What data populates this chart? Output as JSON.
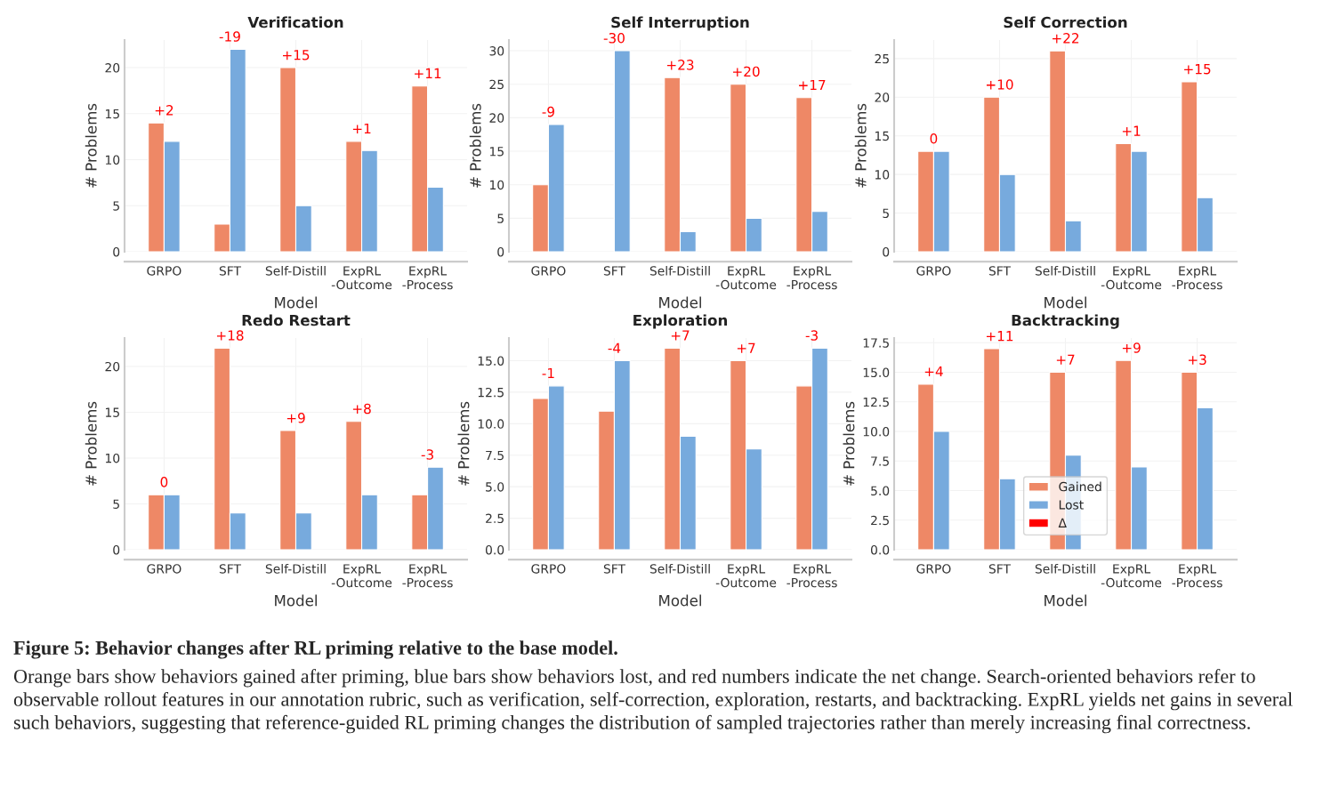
{
  "chart_data": [
    {
      "type": "bar",
      "title": "Verification",
      "xlabel": "Model",
      "ylabel": "# Problems",
      "categories": [
        "GRPO",
        "SFT",
        "Self-Distill",
        "ExpRL\n-Outcome",
        "ExpRL\n-Process"
      ],
      "ylim": [
        0,
        23
      ],
      "yticks": [
        0,
        5,
        10,
        15,
        20
      ],
      "grid": true,
      "series": [
        {
          "color": "#ee8866",
          "values": [
            14,
            3,
            20,
            12,
            18
          ]
        },
        {
          "color": "#77aadd",
          "values": [
            12,
            22,
            5,
            11,
            7
          ]
        },
        {
          "type": "other",
          "color": "#ff0000",
          "values": [
            null,
            null,
            null,
            null,
            null
          ],
          "value_labels": [
            "+2",
            "-19",
            "+15",
            "+1",
            "+11"
          ]
        }
      ]
    },
    {
      "type": "bar",
      "title": "Self Interruption",
      "xlabel": "Model",
      "ylabel": "# Problems",
      "categories": [
        "GRPO",
        "SFT",
        "Self-Distill",
        "ExpRL\n-Outcome",
        "ExpRL\n-Process"
      ],
      "ylim": [
        0,
        31.6
      ],
      "yticks": [
        0,
        5,
        10,
        15,
        20,
        25,
        30
      ],
      "grid": true,
      "series": [
        {
          "color": "#ee8866",
          "values": [
            10,
            0,
            26,
            25,
            23
          ]
        },
        {
          "color": "#77aadd",
          "values": [
            19,
            30,
            3,
            5,
            6
          ]
        },
        {
          "type": "other",
          "color": "#ff0000",
          "values": [
            null,
            null,
            null,
            null,
            null
          ],
          "value_labels": [
            "-9",
            "-30",
            "+23",
            "+20",
            "+17"
          ]
        }
      ]
    },
    {
      "type": "bar",
      "title": "Self Correction",
      "xlabel": "Model",
      "ylabel": "# Problems",
      "categories": [
        "GRPO",
        "SFT",
        "Self-Distill",
        "ExpRL\n-Outcome",
        "ExpRL\n-Process"
      ],
      "ylim": [
        0,
        27.4
      ],
      "yticks": [
        0,
        5,
        10,
        15,
        20,
        25
      ],
      "grid": true,
      "series": [
        {
          "color": "#ee8866",
          "values": [
            13,
            20,
            26,
            14,
            22
          ]
        },
        {
          "color": "#77aadd",
          "values": [
            13,
            10,
            4,
            13,
            7
          ]
        },
        {
          "type": "other",
          "color": "#ff0000",
          "values": [
            null,
            null,
            null,
            null,
            null
          ],
          "value_labels": [
            "0",
            "+10",
            "+22",
            "+1",
            "+15"
          ]
        }
      ]
    },
    {
      "type": "bar",
      "title": "Redo Restart",
      "xlabel": "Model",
      "ylabel": "# Problems",
      "categories": [
        "GRPO",
        "SFT",
        "Self-Distill",
        "ExpRL\n-Outcome",
        "ExpRL\n-Process"
      ],
      "ylim": [
        0,
        23.1
      ],
      "yticks": [
        0,
        5,
        10,
        15,
        20
      ],
      "grid": true,
      "series": [
        {
          "color": "#ee8866",
          "values": [
            6,
            22,
            13,
            14,
            6
          ]
        },
        {
          "color": "#77aadd",
          "values": [
            6,
            4,
            4,
            6,
            9
          ]
        },
        {
          "type": "other",
          "color": "#ff0000",
          "values": [
            null,
            null,
            null,
            null,
            null
          ],
          "value_labels": [
            "0",
            "+18",
            "+9",
            "+8",
            "-3"
          ]
        }
      ]
    },
    {
      "type": "bar",
      "title": "Exploration",
      "xlabel": "Model",
      "ylabel": "# Problems",
      "categories": [
        "GRPO",
        "SFT",
        "Self-Distill",
        "ExpRL\n-Outcome",
        "ExpRL\n-Process"
      ],
      "ylim": [
        0,
        16.8
      ],
      "yticks": [
        {
          "value": 0,
          "label": "0.0"
        },
        {
          "value": 2.5,
          "label": "2.5"
        },
        {
          "value": 5,
          "label": "5.0"
        },
        {
          "value": 7.5,
          "label": "7.5"
        },
        {
          "value": 10,
          "label": "10.0"
        },
        {
          "value": 12.5,
          "label": "12.5"
        },
        {
          "value": 15,
          "label": "15.0"
        }
      ],
      "grid": true,
      "series": [
        {
          "color": "#ee8866",
          "values": [
            12,
            11,
            16,
            15,
            13
          ]
        },
        {
          "color": "#77aadd",
          "values": [
            13,
            15,
            9,
            8,
            16
          ]
        },
        {
          "type": "other",
          "color": "#ff0000",
          "values": [
            null,
            null,
            null,
            null,
            null
          ],
          "value_labels": [
            "-1",
            "-4",
            "+7",
            "+7",
            "-3"
          ]
        }
      ]
    },
    {
      "type": "bar",
      "title": "Backtracking",
      "xlabel": "Model",
      "ylabel": "# Problems",
      "categories": [
        "GRPO",
        "SFT",
        "Self-Distill",
        "ExpRL\n-Outcome",
        "ExpRL\n-Process"
      ],
      "ylim": [
        0,
        17.9
      ],
      "yticks": [
        {
          "value": 0,
          "label": "0.0"
        },
        {
          "value": 2.5,
          "label": "2.5"
        },
        {
          "value": 5,
          "label": "5.0"
        },
        {
          "value": 7.5,
          "label": "7.5"
        },
        {
          "value": 10,
          "label": "10.0"
        },
        {
          "value": 12.5,
          "label": "12.5"
        },
        {
          "value": 15,
          "label": "15.0"
        },
        17.5
      ],
      "grid": true,
      "legend": "bottom",
      "annotations": [
        "Figure 5: Behavior changes after RL priming relative to the base model.",
        "Orange bars show behaviors gained after priming, blue bars show behaviors lost, and red numbers indicate the net change. Search-oriented behaviors refer to observable rollout features in our annotation rubric, such as verification, self-correction, exploration, restarts, and backtracking. ExpRL yields net gains in several such behaviors, suggesting that reference-guided RL priming changes the distribution of sampled trajectories rather than merely increasing final correctness."
      ],
      "series": [
        {
          "name": "Gained",
          "color": "#ee8866",
          "values": [
            14,
            17,
            15,
            16,
            15
          ]
        },
        {
          "name": "Lost",
          "color": "#77aadd",
          "values": [
            10,
            6,
            8,
            7,
            12
          ]
        },
        {
          "name": "Δ",
          "type": "other",
          "color": "#ff0000",
          "values": [
            null,
            null,
            null,
            null,
            null
          ],
          "value_labels": [
            "+4",
            "+11",
            "+7",
            "+9",
            "+3"
          ]
        }
      ]
    }
  ]
}
